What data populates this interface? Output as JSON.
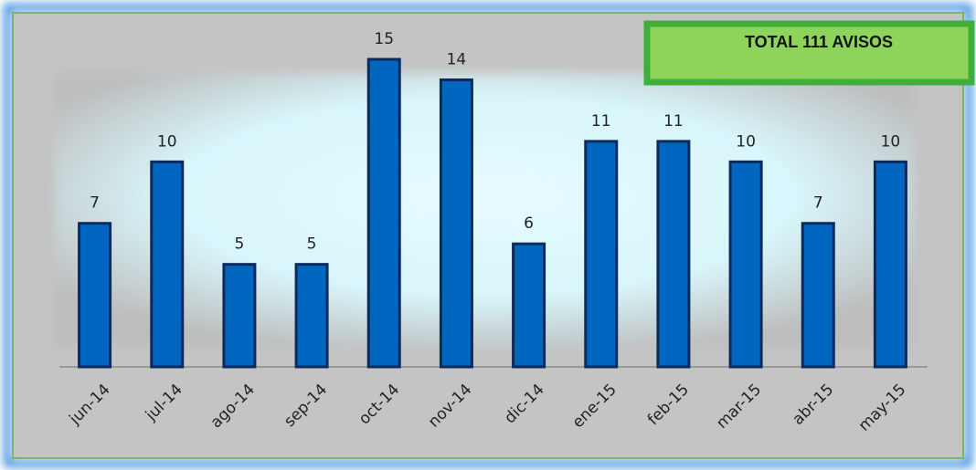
{
  "chart_data": {
    "type": "bar",
    "categories": [
      "jun-14",
      "jul-14",
      "ago-14",
      "sep-14",
      "oct-14",
      "nov-14",
      "dic-14",
      "ene-15",
      "feb-15",
      "mar-15",
      "abr-15",
      "may-15"
    ],
    "values": [
      7,
      10,
      5,
      5,
      15,
      14,
      6,
      11,
      11,
      10,
      7,
      10
    ],
    "color": "#0066c0",
    "ylim": [
      0,
      15
    ],
    "annotation": "TOTAL 111 AVISOS"
  }
}
